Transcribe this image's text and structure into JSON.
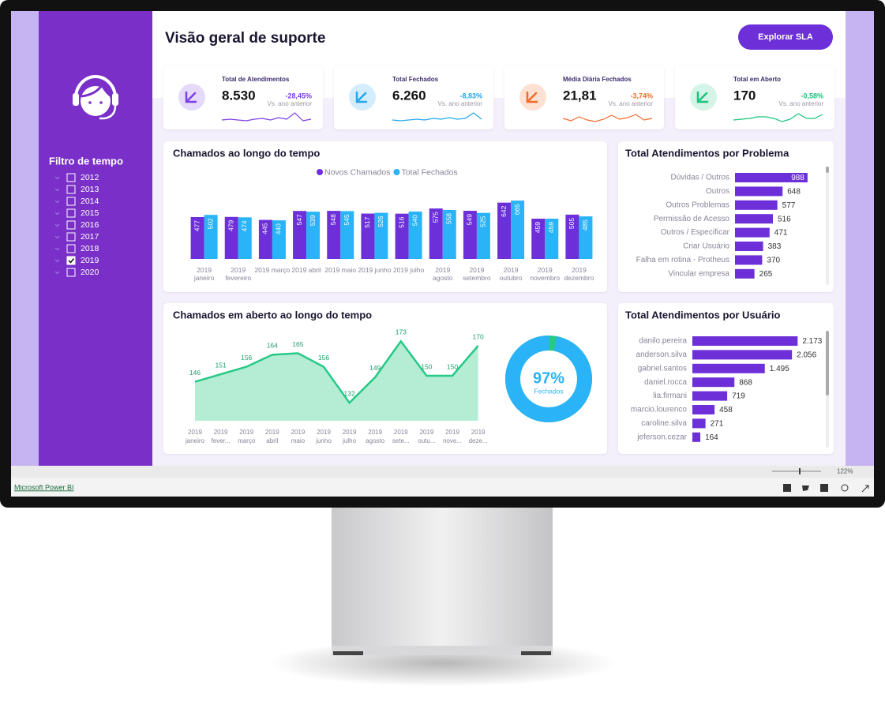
{
  "header": {
    "title": "Visão geral de suporte",
    "button": "Explorar SLA"
  },
  "sidebar": {
    "filter_title": "Filtro de tempo",
    "years": [
      {
        "label": "2012",
        "checked": false
      },
      {
        "label": "2013",
        "checked": false
      },
      {
        "label": "2014",
        "checked": false
      },
      {
        "label": "2015",
        "checked": false
      },
      {
        "label": "2016",
        "checked": false
      },
      {
        "label": "2017",
        "checked": false
      },
      {
        "label": "2018",
        "checked": false
      },
      {
        "label": "2019",
        "checked": true
      },
      {
        "label": "2020",
        "checked": false
      }
    ]
  },
  "kpis": [
    {
      "title": "Total de Atendimentos",
      "value": "8.530",
      "change": "-28,45%",
      "note": "Vs. ano anterior",
      "color": "#7b3fe4",
      "bg": "#e6dafb",
      "spark": {
        "values": [
          3,
          3.5,
          3,
          2.5,
          3.5,
          4,
          3,
          4.5,
          3.5,
          7.5,
          2.5,
          3.5
        ],
        "ylim": [
          0,
          10
        ]
      }
    },
    {
      "title": "Total Fechados",
      "value": "6.260",
      "change": "-8,83%",
      "note": "Vs. ano anterior",
      "color": "#22a7f0",
      "bg": "#d4edfc",
      "spark": {
        "values": [
          3,
          2.5,
          3,
          3.5,
          3,
          4,
          3.5,
          4.5,
          3.5,
          4,
          7.5,
          3.5
        ],
        "ylim": [
          0,
          10
        ]
      }
    },
    {
      "title": "Média Diária Fechados",
      "value": "21,81",
      "change": "-3,74%",
      "note": "Vs. ano anterior",
      "color": "#f26b2a",
      "bg": "#fde1d2",
      "spark": {
        "values": [
          4,
          2.5,
          5,
          3,
          2,
          3.5,
          6,
          3.5,
          4.5,
          6.5,
          3,
          4
        ],
        "ylim": [
          0,
          10
        ]
      }
    },
    {
      "title": "Total em Aberto",
      "value": "170",
      "change": "-0,58%",
      "note": "Vs. ano anterior",
      "color": "#18c47e",
      "bg": "#d3f4e6",
      "spark": {
        "values": [
          3,
          3.5,
          4,
          5,
          5,
          4,
          2,
          3.5,
          7,
          4,
          4,
          6.5
        ],
        "ylim": [
          0,
          10
        ]
      }
    }
  ],
  "chart_data": [
    {
      "type": "bar",
      "title": "Chamados ao longo do tempo",
      "legend": "top",
      "categories": [
        "2019 janeiro",
        "2019 fevereiro",
        "2019 março",
        "2019 abril",
        "2019 maio",
        "2019 junho",
        "2019 julho",
        "2019 agosto",
        "2019 setembro",
        "2019 outubro",
        "2019 novembro",
        "2019 dezembro"
      ],
      "series": [
        {
          "name": "Novos Chamados",
          "color": "#6c2fd8",
          "values": [
            477,
            479,
            445,
            547,
            548,
            517,
            516,
            575,
            549,
            642,
            459,
            505
          ]
        },
        {
          "name": "Total Fechados",
          "color": "#2ab3f6",
          "values": [
            502,
            474,
            440,
            539,
            545,
            526,
            540,
            558,
            525,
            665,
            459,
            485
          ]
        }
      ],
      "ylim": [
        0,
        900
      ]
    },
    {
      "type": "area",
      "title": "Chamados em aberto ao longo do tempo",
      "categories": [
        "2019 janeiro",
        "2019 fever...",
        "2019 março",
        "2019 abril",
        "2019 maio",
        "2019 junho",
        "2019 julho",
        "2019 agosto",
        "2019 sete...",
        "2019 outu...",
        "2019 nove...",
        "2019 deze..."
      ],
      "values": [
        146,
        151,
        156,
        164,
        165,
        156,
        132,
        149,
        173,
        150,
        150,
        170
      ],
      "color": "#27c987",
      "fill": "#b4edd4",
      "ylim": [
        120,
        180
      ]
    },
    {
      "type": "donut",
      "values": [
        97
      ],
      "value_labels": [
        "97%"
      ],
      "label": "Fechados",
      "ylim": [
        0,
        100
      ],
      "color": "#2ab3f6",
      "rest_color": "#27c987"
    },
    {
      "type": "hbar",
      "title": "Total Atendimentos por Problema",
      "categories": [
        "Dúvidas / Outros",
        "Outros",
        "Outros Problemas",
        "Permissão de Acesso",
        "Outros / Especificar",
        "Criar Usuário",
        "Falha em rotina - Protheus",
        "Vincular empresa"
      ],
      "values": [
        988,
        648,
        577,
        516,
        471,
        383,
        370,
        265
      ],
      "color": "#6c2fd8",
      "xlim": [
        0,
        1000
      ]
    },
    {
      "type": "hbar",
      "title": "Total Atendimentos por Usuário",
      "categories": [
        "danilo.pereira",
        "anderson.silva",
        "gabriel.santos",
        "daniel.rocca",
        "lia.firmani",
        "marcio.lourenco",
        "caroline.silva",
        "jeferson.cezar"
      ],
      "values": [
        2173,
        2056,
        1495,
        868,
        719,
        458,
        271,
        164
      ],
      "value_labels": [
        "2.173",
        "2.056",
        "1.495",
        "868",
        "719",
        "458",
        "271",
        "164"
      ],
      "color": "#6c2fd8",
      "xlim": [
        0,
        2200
      ]
    }
  ],
  "footer": {
    "brand": "Microsoft Power BI",
    "zoom": "122%"
  }
}
